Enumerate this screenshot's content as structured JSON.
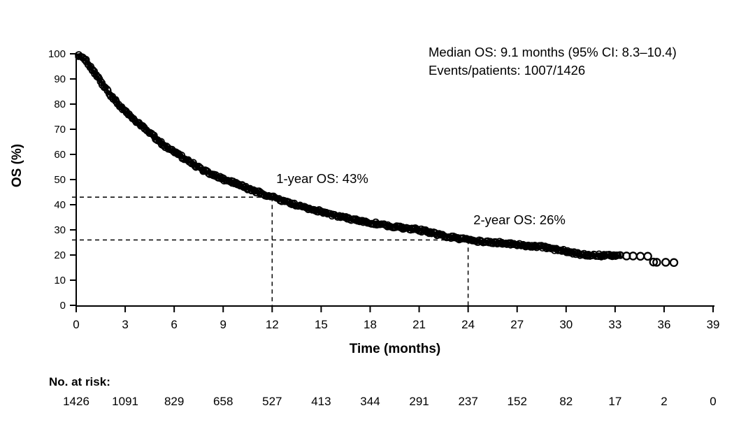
{
  "chart_data": {
    "type": "line",
    "subtype": "kaplan-meier-survival",
    "title": "",
    "xlabel": "Time (months)",
    "ylabel": "OS (%)",
    "xlim": [
      0,
      39
    ],
    "ylim": [
      0,
      100
    ],
    "x_ticks": [
      0,
      3,
      6,
      9,
      12,
      15,
      18,
      21,
      24,
      27,
      30,
      33,
      36,
      39
    ],
    "y_ticks": [
      0,
      10,
      20,
      30,
      40,
      50,
      60,
      70,
      80,
      90,
      100
    ],
    "grid": false,
    "legend": "none",
    "curve_color": "#000000",
    "annotations": {
      "stats": [
        "Median OS: 9.1 months (95% CI: 8.3–10.4)",
        "Events/patients: 1007/1426"
      ],
      "one_year": {
        "text": "1-year OS: 43%",
        "x": 12,
        "y": 43
      },
      "two_year": {
        "text": "2-year OS: 26%",
        "x": 24,
        "y": 26
      }
    },
    "reference_lines": [
      {
        "x": 12,
        "y": 43
      },
      {
        "x": 24,
        "y": 26
      }
    ],
    "series": [
      {
        "name": "Overall survival",
        "points": [
          [
            0,
            99.6
          ],
          [
            0.3,
            98.8
          ],
          [
            0.6,
            97.2
          ],
          [
            1,
            93.5
          ],
          [
            1.5,
            89
          ],
          [
            2,
            84.5
          ],
          [
            2.5,
            80.5
          ],
          [
            3,
            77
          ],
          [
            3.5,
            74
          ],
          [
            4,
            71.5
          ],
          [
            4.5,
            68.5
          ],
          [
            5,
            65.5
          ],
          [
            5.5,
            63
          ],
          [
            6,
            61
          ],
          [
            6.5,
            58.8
          ],
          [
            7,
            56.8
          ],
          [
            7.5,
            54.8
          ],
          [
            8,
            53
          ],
          [
            8.5,
            51.5
          ],
          [
            9,
            50.3
          ],
          [
            9.5,
            49.2
          ],
          [
            10,
            47.8
          ],
          [
            10.5,
            46.5
          ],
          [
            11,
            45.3
          ],
          [
            11.5,
            44.1
          ],
          [
            12,
            43
          ],
          [
            12.5,
            41.8
          ],
          [
            13,
            40.8
          ],
          [
            13.5,
            39.8
          ],
          [
            14,
            38.8
          ],
          [
            14.5,
            38
          ],
          [
            15,
            37.2
          ],
          [
            15.5,
            36.3
          ],
          [
            16,
            35.5
          ],
          [
            16.5,
            34.7
          ],
          [
            17,
            34
          ],
          [
            17.5,
            33.4
          ],
          [
            18,
            32.8
          ],
          [
            18.5,
            32.3
          ],
          [
            19,
            31.8
          ],
          [
            19.5,
            31.3
          ],
          [
            20,
            30.8
          ],
          [
            20.5,
            30.4
          ],
          [
            21,
            30
          ],
          [
            21.5,
            29.3
          ],
          [
            22,
            28.5
          ],
          [
            22.5,
            27.7
          ],
          [
            23,
            27
          ],
          [
            23.5,
            26.5
          ],
          [
            24,
            26
          ],
          [
            24.5,
            25.6
          ],
          [
            25,
            25.3
          ],
          [
            25.5,
            25
          ],
          [
            26,
            24.8
          ],
          [
            26.5,
            24.5
          ],
          [
            27,
            24.2
          ],
          [
            27.5,
            23.9
          ],
          [
            28,
            23.6
          ],
          [
            28.5,
            23.2
          ],
          [
            29,
            22.8
          ],
          [
            29.5,
            22.2
          ],
          [
            30,
            21.5
          ],
          [
            30.5,
            20.7
          ],
          [
            30.8,
            20.3
          ],
          [
            31,
            20
          ],
          [
            31.5,
            19.9
          ],
          [
            32,
            19.8
          ],
          [
            33,
            19.7
          ],
          [
            33.4,
            19.6
          ]
        ]
      }
    ],
    "tail_circles": [
      [
        33.7,
        19.6
      ],
      [
        34.1,
        19.6
      ],
      [
        34.55,
        19.5
      ],
      [
        35.0,
        19.5
      ],
      [
        35.35,
        17.2
      ],
      [
        35.55,
        17.1
      ],
      [
        36.1,
        17.1
      ],
      [
        36.6,
        17.0
      ]
    ],
    "key_points": {
      "median_months": 9.1,
      "ci95": "8.3–10.4",
      "events": 1007,
      "patients": 1426,
      "os_1yr_pct": 43,
      "os_2yr_pct": 26
    },
    "at_risk": {
      "label": "No. at risk:",
      "times": [
        0,
        3,
        6,
        9,
        12,
        15,
        18,
        21,
        24,
        27,
        30,
        33,
        36,
        39
      ],
      "counts": [
        1426,
        1091,
        829,
        658,
        527,
        413,
        344,
        291,
        237,
        152,
        82,
        17,
        2,
        0
      ]
    }
  }
}
